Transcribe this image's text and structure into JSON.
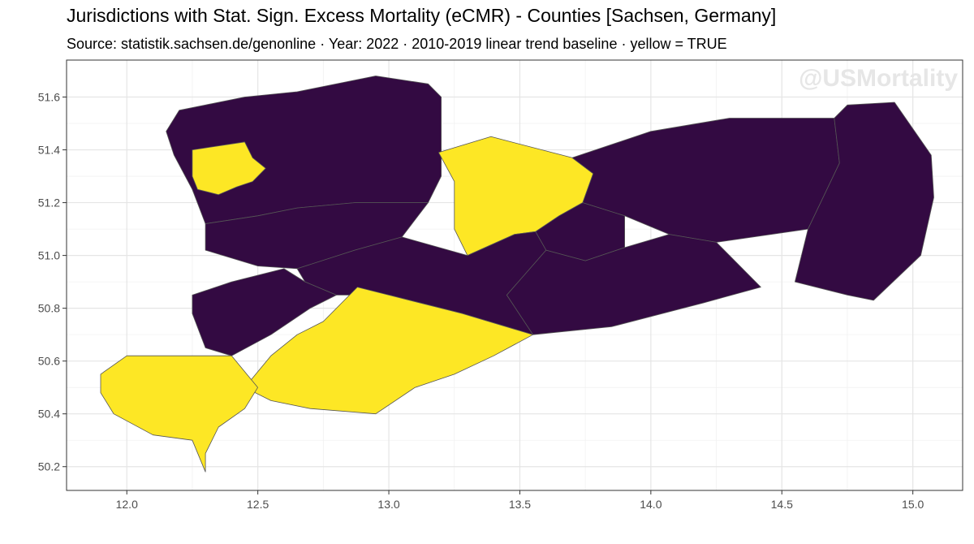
{
  "title": "Jurisdictions with Stat. Sign. Excess Mortality (eCMR) - Counties [Sachsen, Germany]",
  "subtitle": "Source: statistik.sachsen.de/genonline · Year: 2022 · 2010-2019 linear trend baseline · yellow = TRUE",
  "watermark": "@USMortality",
  "colors": {
    "true_fill": "#FDE725",
    "false_fill": "#330A42",
    "border": "#555555",
    "grid": "#e5e5e5",
    "panel_border": "#333333"
  },
  "chart_data": {
    "type": "map",
    "region": "Sachsen, Germany",
    "unit": "Counties",
    "xlim": [
      11.77,
      15.19
    ],
    "ylim": [
      50.11,
      51.74
    ],
    "x_ticks": [
      "12.0",
      "12.5",
      "13.0",
      "13.5",
      "14.0",
      "14.5",
      "15.0"
    ],
    "y_ticks": [
      "50.2",
      "50.4",
      "50.6",
      "50.8",
      "51.0",
      "51.2",
      "51.4",
      "51.6"
    ],
    "grid": true,
    "regions": [
      {
        "id": "nordsachsen",
        "excess": false,
        "outline": [
          [
            12.2,
            51.55
          ],
          [
            12.45,
            51.6
          ],
          [
            12.65,
            51.62
          ],
          [
            12.95,
            51.68
          ],
          [
            13.15,
            51.65
          ],
          [
            13.2,
            51.6
          ],
          [
            13.2,
            51.47
          ],
          [
            13.2,
            51.3
          ],
          [
            13.15,
            51.2
          ],
          [
            12.87,
            51.2
          ],
          [
            12.65,
            51.18
          ],
          [
            12.5,
            51.15
          ],
          [
            12.3,
            51.12
          ],
          [
            12.25,
            51.25
          ],
          [
            12.18,
            51.38
          ],
          [
            12.15,
            51.47
          ]
        ]
      },
      {
        "id": "leipzig-stadt",
        "excess": true,
        "outline": [
          [
            12.25,
            51.4
          ],
          [
            12.45,
            51.43
          ],
          [
            12.48,
            51.37
          ],
          [
            12.53,
            51.33
          ],
          [
            12.48,
            51.28
          ],
          [
            12.42,
            51.26
          ],
          [
            12.35,
            51.23
          ],
          [
            12.27,
            51.25
          ],
          [
            12.25,
            51.3
          ]
        ]
      },
      {
        "id": "landkreis-leipzig",
        "excess": false,
        "outline": [
          [
            12.3,
            51.12
          ],
          [
            12.5,
            51.15
          ],
          [
            12.65,
            51.18
          ],
          [
            12.87,
            51.2
          ],
          [
            13.15,
            51.2
          ],
          [
            13.05,
            51.07
          ],
          [
            12.87,
            51.02
          ],
          [
            12.65,
            50.95
          ],
          [
            12.5,
            50.96
          ],
          [
            12.3,
            51.02
          ]
        ]
      },
      {
        "id": "meissen",
        "excess": true,
        "outline": [
          [
            13.19,
            51.39
          ],
          [
            13.39,
            51.45
          ],
          [
            13.7,
            51.37
          ],
          [
            13.78,
            51.31
          ],
          [
            13.74,
            51.2
          ],
          [
            13.65,
            51.15
          ],
          [
            13.56,
            51.09
          ],
          [
            13.48,
            51.08
          ],
          [
            13.3,
            51.0
          ],
          [
            13.25,
            51.1
          ],
          [
            13.25,
            51.28
          ]
        ]
      },
      {
        "id": "bautzen",
        "excess": false,
        "outline": [
          [
            13.7,
            51.37
          ],
          [
            14.0,
            51.47
          ],
          [
            14.3,
            51.52
          ],
          [
            14.7,
            51.52
          ],
          [
            14.72,
            51.35
          ],
          [
            14.6,
            51.1
          ],
          [
            14.25,
            51.05
          ],
          [
            14.07,
            51.08
          ],
          [
            13.9,
            51.15
          ],
          [
            13.74,
            51.2
          ],
          [
            13.78,
            51.31
          ]
        ]
      },
      {
        "id": "goerlitz",
        "excess": false,
        "outline": [
          [
            14.7,
            51.52
          ],
          [
            14.75,
            51.57
          ],
          [
            14.93,
            51.58
          ],
          [
            15.07,
            51.38
          ],
          [
            15.08,
            51.22
          ],
          [
            15.03,
            51.0
          ],
          [
            14.85,
            50.83
          ],
          [
            14.75,
            50.85
          ],
          [
            14.55,
            50.9
          ],
          [
            14.6,
            51.1
          ],
          [
            14.72,
            51.35
          ]
        ]
      },
      {
        "id": "dresden",
        "excess": false,
        "outline": [
          [
            13.56,
            51.09
          ],
          [
            13.65,
            51.15
          ],
          [
            13.74,
            51.2
          ],
          [
            13.9,
            51.15
          ],
          [
            13.9,
            51.03
          ],
          [
            13.75,
            50.98
          ],
          [
            13.6,
            51.02
          ]
        ]
      },
      {
        "id": "saechsische-schweiz",
        "excess": false,
        "outline": [
          [
            13.6,
            51.02
          ],
          [
            13.75,
            50.98
          ],
          [
            13.9,
            51.03
          ],
          [
            14.07,
            51.08
          ],
          [
            14.25,
            51.05
          ],
          [
            14.42,
            50.88
          ],
          [
            14.2,
            50.82
          ],
          [
            13.85,
            50.73
          ],
          [
            13.55,
            50.7
          ],
          [
            13.45,
            50.85
          ]
        ]
      },
      {
        "id": "mittelsachsen",
        "excess": false,
        "outline": [
          [
            12.65,
            50.95
          ],
          [
            12.87,
            51.02
          ],
          [
            13.05,
            51.07
          ],
          [
            13.3,
            51.0
          ],
          [
            13.48,
            51.08
          ],
          [
            13.56,
            51.09
          ],
          [
            13.6,
            51.02
          ],
          [
            13.45,
            50.85
          ],
          [
            13.55,
            50.7
          ],
          [
            13.28,
            50.78
          ],
          [
            13.0,
            50.85
          ],
          [
            12.8,
            50.85
          ],
          [
            12.68,
            50.9
          ]
        ]
      },
      {
        "id": "zwickau",
        "excess": false,
        "outline": [
          [
            12.25,
            50.85
          ],
          [
            12.4,
            50.9
          ],
          [
            12.6,
            50.95
          ],
          [
            12.68,
            50.9
          ],
          [
            12.8,
            50.85
          ],
          [
            12.7,
            50.8
          ],
          [
            12.55,
            50.7
          ],
          [
            12.4,
            50.62
          ],
          [
            12.3,
            50.65
          ],
          [
            12.25,
            50.78
          ]
        ]
      },
      {
        "id": "erzgebirgskreis",
        "excess": true,
        "outline": [
          [
            12.75,
            50.75
          ],
          [
            12.88,
            50.88
          ],
          [
            13.0,
            50.85
          ],
          [
            13.28,
            50.78
          ],
          [
            13.55,
            50.7
          ],
          [
            13.4,
            50.62
          ],
          [
            13.25,
            50.55
          ],
          [
            13.1,
            50.5
          ],
          [
            12.95,
            50.4
          ],
          [
            12.7,
            50.42
          ],
          [
            12.55,
            50.45
          ],
          [
            12.45,
            50.5
          ],
          [
            12.55,
            50.62
          ],
          [
            12.65,
            50.7
          ]
        ]
      },
      {
        "id": "vogtlandkreis",
        "excess": true,
        "outline": [
          [
            11.9,
            50.55
          ],
          [
            12.0,
            50.62
          ],
          [
            12.2,
            50.62
          ],
          [
            12.4,
            50.62
          ],
          [
            12.5,
            50.5
          ],
          [
            12.45,
            50.42
          ],
          [
            12.35,
            50.35
          ],
          [
            12.3,
            50.25
          ],
          [
            12.3,
            50.18
          ],
          [
            12.25,
            50.3
          ],
          [
            12.1,
            50.32
          ],
          [
            11.95,
            50.4
          ],
          [
            11.9,
            50.48
          ]
        ]
      }
    ]
  }
}
